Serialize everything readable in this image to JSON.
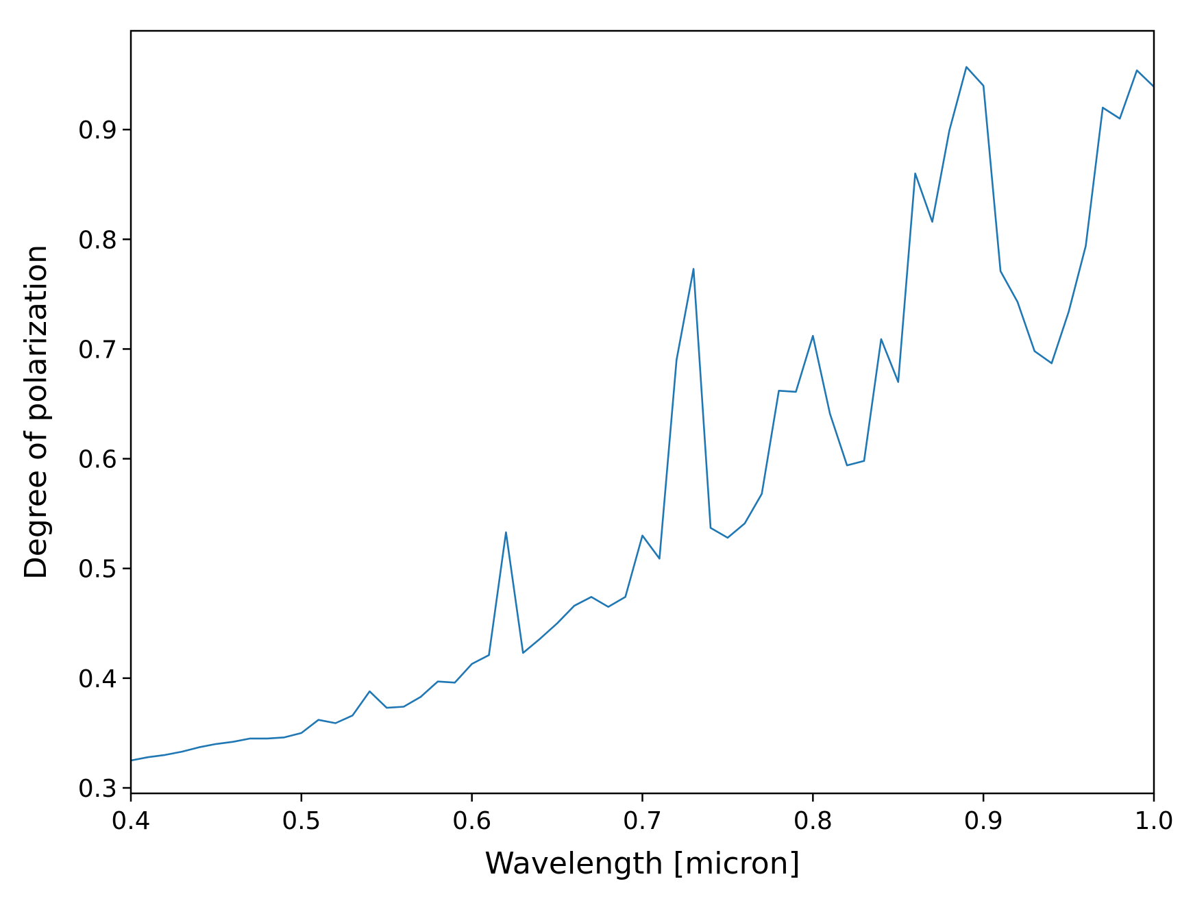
{
  "chart_data": {
    "type": "line",
    "title": "",
    "xlabel": "Wavelength [micron]",
    "ylabel": "Degree of polarization",
    "xlim": [
      0.4,
      1.0
    ],
    "ylim": [
      0.295,
      0.99
    ],
    "grid": false,
    "x_ticks": [
      {
        "value": 0.4,
        "label": "0.4"
      },
      {
        "value": 0.5,
        "label": "0.5"
      },
      {
        "value": 0.6,
        "label": "0.6"
      },
      {
        "value": 0.7,
        "label": "0.7"
      },
      {
        "value": 0.8,
        "label": "0.8"
      },
      {
        "value": 0.9,
        "label": "0.9"
      },
      {
        "value": 1.0,
        "label": "1.0"
      }
    ],
    "y_ticks": [
      {
        "value": 0.3,
        "label": "0.3"
      },
      {
        "value": 0.4,
        "label": "0.4"
      },
      {
        "value": 0.5,
        "label": "0.5"
      },
      {
        "value": 0.6,
        "label": "0.6"
      },
      {
        "value": 0.7,
        "label": "0.7"
      },
      {
        "value": 0.8,
        "label": "0.8"
      },
      {
        "value": 0.9,
        "label": "0.9"
      }
    ],
    "series": [
      {
        "color": "#1f77b4",
        "x": [
          0.4,
          0.41,
          0.42,
          0.43,
          0.44,
          0.45,
          0.46,
          0.47,
          0.48,
          0.49,
          0.5,
          0.51,
          0.52,
          0.53,
          0.54,
          0.55,
          0.56,
          0.57,
          0.58,
          0.59,
          0.6,
          0.61,
          0.62,
          0.63,
          0.64,
          0.65,
          0.66,
          0.67,
          0.68,
          0.69,
          0.7,
          0.71,
          0.72,
          0.73,
          0.74,
          0.75,
          0.76,
          0.77,
          0.78,
          0.79,
          0.8,
          0.81,
          0.82,
          0.83,
          0.84,
          0.85,
          0.86,
          0.87,
          0.88,
          0.89,
          0.9,
          0.91,
          0.92,
          0.93,
          0.94,
          0.95,
          0.96,
          0.97,
          0.98,
          0.99,
          1.0
        ],
        "y": [
          0.325,
          0.328,
          0.33,
          0.333,
          0.337,
          0.34,
          0.342,
          0.345,
          0.345,
          0.346,
          0.35,
          0.362,
          0.359,
          0.366,
          0.388,
          0.373,
          0.374,
          0.383,
          0.397,
          0.396,
          0.413,
          0.421,
          0.533,
          0.423,
          0.436,
          0.45,
          0.466,
          0.474,
          0.465,
          0.474,
          0.53,
          0.509,
          0.69,
          0.773,
          0.537,
          0.528,
          0.541,
          0.568,
          0.662,
          0.661,
          0.712,
          0.641,
          0.594,
          0.598,
          0.709,
          0.67,
          0.86,
          0.816,
          0.899,
          0.957,
          0.94,
          0.771,
          0.743,
          0.698,
          0.687,
          0.734,
          0.794,
          0.92,
          0.91,
          0.954,
          0.939
        ]
      }
    ]
  }
}
